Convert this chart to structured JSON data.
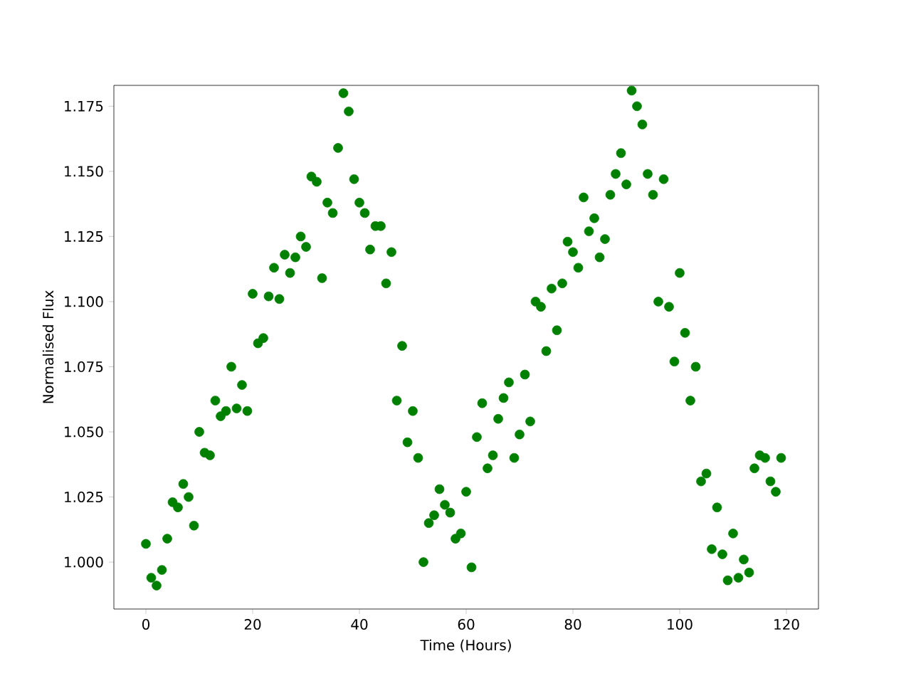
{
  "chart_data": {
    "type": "scatter",
    "xlabel": "Time (Hours)",
    "ylabel": "Normalised Flux",
    "marker": "circle",
    "grid": false,
    "x": [
      0,
      1,
      2,
      3,
      4,
      5,
      6,
      7,
      8,
      9,
      10,
      11,
      12,
      13,
      14,
      15,
      16,
      17,
      18,
      19,
      20,
      21,
      22,
      23,
      24,
      25,
      26,
      27,
      28,
      29,
      30,
      31,
      32,
      33,
      34,
      35,
      36,
      37,
      38,
      39,
      40,
      41,
      42,
      43,
      44,
      45,
      46,
      47,
      48,
      49,
      50,
      51,
      52,
      53,
      54,
      55,
      56,
      57,
      58,
      59,
      60,
      61,
      62,
      63,
      64,
      65,
      66,
      67,
      68,
      69,
      70,
      71,
      72,
      73,
      74,
      75,
      76,
      77,
      78,
      79,
      80,
      81,
      82,
      83,
      84,
      85,
      86,
      87,
      88,
      89,
      90,
      91,
      92,
      93,
      94,
      95,
      96,
      97,
      98,
      99,
      100,
      101,
      102,
      103,
      104,
      105,
      106,
      107,
      108,
      109,
      110,
      111,
      112,
      113,
      114,
      115,
      116,
      117,
      118,
      119
    ],
    "series": [
      {
        "color": "#008000",
        "values": [
          1.007,
          0.994,
          0.991,
          0.997,
          1.009,
          1.023,
          1.021,
          1.03,
          1.025,
          1.014,
          1.05,
          1.042,
          1.041,
          1.062,
          1.056,
          1.058,
          1.075,
          1.059,
          1.068,
          1.058,
          1.103,
          1.084,
          1.086,
          1.102,
          1.113,
          1.101,
          1.118,
          1.111,
          1.117,
          1.125,
          1.121,
          1.148,
          1.146,
          1.109,
          1.138,
          1.134,
          1.159,
          1.18,
          1.173,
          1.147,
          1.138,
          1.134,
          1.12,
          1.129,
          1.129,
          1.107,
          1.119,
          1.062,
          1.083,
          1.046,
          1.058,
          1.04,
          1.0,
          1.015,
          1.018,
          1.028,
          1.022,
          1.019,
          1.009,
          1.011,
          1.027,
          0.998,
          1.048,
          1.061,
          1.036,
          1.041,
          1.055,
          1.063,
          1.069,
          1.04,
          1.049,
          1.072,
          1.054,
          1.1,
          1.098,
          1.081,
          1.105,
          1.089,
          1.107,
          1.123,
          1.119,
          1.113,
          1.14,
          1.127,
          1.132,
          1.117,
          1.124,
          1.141,
          1.149,
          1.157,
          1.145,
          1.181,
          1.175,
          1.168,
          1.149,
          1.141,
          1.1,
          1.147,
          1.098,
          1.077,
          1.111,
          1.088,
          1.062,
          1.075,
          1.031,
          1.034,
          1.005,
          1.021,
          1.003,
          0.993,
          1.011,
          0.994,
          1.001,
          0.996,
          1.036,
          1.041,
          1.04,
          1.031,
          1.027,
          1.04
        ]
      }
    ],
    "xlim": [
      -6,
      126
    ],
    "ylim": [
      0.982,
      1.183
    ],
    "xticks": [
      0,
      20,
      40,
      60,
      80,
      100,
      120
    ],
    "yticks": [
      {
        "value": 1.0,
        "label": "1.000"
      },
      {
        "value": 1.025,
        "label": "1.025"
      },
      {
        "value": 1.05,
        "label": "1.050"
      },
      {
        "value": 1.075,
        "label": "1.075"
      },
      {
        "value": 1.1,
        "label": "1.100"
      },
      {
        "value": 1.125,
        "label": "1.125"
      },
      {
        "value": 1.15,
        "label": "1.150"
      },
      {
        "value": 1.175,
        "label": "1.175"
      }
    ]
  }
}
